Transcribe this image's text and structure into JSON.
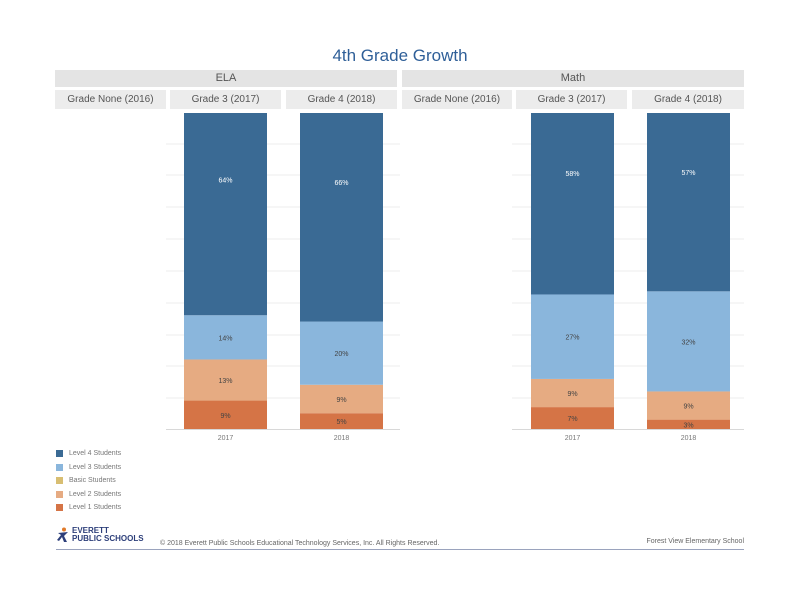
{
  "title": "4th Grade Growth",
  "panels": [
    {
      "subject": "ELA",
      "columns": [
        "Grade None (2016)",
        "Grade 3 (2017)",
        "Grade 4 (2018)"
      ]
    },
    {
      "subject": "Math",
      "columns": [
        "Grade None (2016)",
        "Grade 3 (2017)",
        "Grade 4 (2018)"
      ]
    }
  ],
  "colors": {
    "level4": "#3a6a94",
    "level3": "#8ab6dc",
    "basic": "#d8be72",
    "level2": "#e6ab82",
    "level1": "#d57446"
  },
  "chart_data": [
    {
      "type": "bar",
      "stacked": true,
      "title": "ELA",
      "categories": [
        "2017",
        "2018"
      ],
      "series": [
        {
          "name": "Level 1 Students",
          "values": [
            9,
            5
          ],
          "labels": [
            "9%",
            "5%"
          ]
        },
        {
          "name": "Level 2 Students",
          "values": [
            13,
            9
          ],
          "labels": [
            "13%",
            "9%"
          ]
        },
        {
          "name": "Level 3 Students",
          "values": [
            14,
            20
          ],
          "labels": [
            "14%",
            "20%"
          ]
        },
        {
          "name": "Level 4 Students",
          "values": [
            64,
            66
          ],
          "labels": [
            "64%",
            "66%"
          ]
        }
      ],
      "ylim": [
        0,
        100
      ]
    },
    {
      "type": "bar",
      "stacked": true,
      "title": "Math",
      "categories": [
        "2017",
        "2018"
      ],
      "series": [
        {
          "name": "Level 1 Students",
          "values": [
            7,
            3
          ],
          "labels": [
            "7%",
            "3%"
          ]
        },
        {
          "name": "Level 2 Students",
          "values": [
            9,
            9
          ],
          "labels": [
            "9%",
            "9%"
          ]
        },
        {
          "name": "Level 3 Students",
          "values": [
            27,
            32
          ],
          "labels": [
            "27%",
            "32%"
          ]
        },
        {
          "name": "Level 4 Students",
          "values": [
            58,
            57
          ],
          "labels": [
            "58%",
            "57%"
          ]
        }
      ],
      "ylim": [
        0,
        100
      ]
    }
  ],
  "legend": [
    {
      "label": "Level 4 Students",
      "color": "#3a6a94"
    },
    {
      "label": "Level 3 Students",
      "color": "#8ab6dc"
    },
    {
      "label": "Basic Students",
      "color": "#d8be72"
    },
    {
      "label": "Level 2 Students",
      "color": "#e6ab82"
    },
    {
      "label": "Level 1 Students",
      "color": "#d57446"
    }
  ],
  "footer": {
    "logo_line1": "EVERETT",
    "logo_line2": "PUBLIC SCHOOLS",
    "copyright": "© 2018 Everett Public Schools Educational Technology Services, Inc. All Rights Reserved.",
    "school": "Forest View Elementary School"
  }
}
